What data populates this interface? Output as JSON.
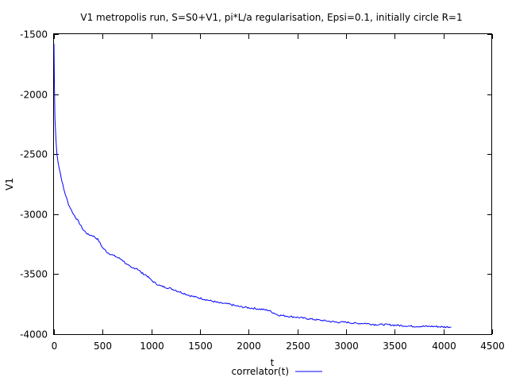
{
  "chart_data": {
    "type": "line",
    "title": "V1 metropolis run, S=S0+V1, pi*L/a regularisation, Epsi=0.1, initially circle R=1",
    "xlabel": "t",
    "ylabel": "V1",
    "xlim": [
      0,
      4500
    ],
    "ylim": [
      -4000,
      -1500
    ],
    "xticks": [
      "0",
      "500",
      "1000",
      "1500",
      "2000",
      "2500",
      "3000",
      "3500",
      "4000",
      "4500"
    ],
    "yticks": [
      "-1500",
      "-2000",
      "-2500",
      "-3000",
      "-3500",
      "-4000"
    ],
    "grid": false,
    "legend_position": "bottom-center",
    "series": [
      {
        "name": "correlator(t)",
        "color": "#0000ff",
        "x": [
          0,
          5,
          10,
          20,
          30,
          50,
          70,
          100,
          150,
          200,
          250,
          300,
          350,
          400,
          450,
          500,
          550,
          600,
          650,
          700,
          750,
          800,
          850,
          900,
          950,
          1000,
          1050,
          1100,
          1200,
          1300,
          1400,
          1500,
          1600,
          1700,
          1800,
          1900,
          2000,
          2100,
          2200,
          2300,
          2400,
          2500,
          2600,
          2700,
          2800,
          2900,
          3000,
          3100,
          3200,
          3300,
          3400,
          3500,
          3600,
          3700,
          3800,
          3900,
          4000,
          4080
        ],
        "y": [
          -1580,
          -1950,
          -2200,
          -2380,
          -2500,
          -2600,
          -2680,
          -2790,
          -2920,
          -3000,
          -3060,
          -3130,
          -3170,
          -3180,
          -3210,
          -3280,
          -3320,
          -3340,
          -3360,
          -3380,
          -3420,
          -3450,
          -3450,
          -3490,
          -3510,
          -3550,
          -3580,
          -3600,
          -3620,
          -3650,
          -3680,
          -3700,
          -3720,
          -3740,
          -3750,
          -3770,
          -3780,
          -3790,
          -3800,
          -3840,
          -3850,
          -3860,
          -3870,
          -3880,
          -3890,
          -3900,
          -3900,
          -3910,
          -3910,
          -3920,
          -3920,
          -3925,
          -3930,
          -3935,
          -3935,
          -3935,
          -3940,
          -3940
        ]
      }
    ]
  }
}
